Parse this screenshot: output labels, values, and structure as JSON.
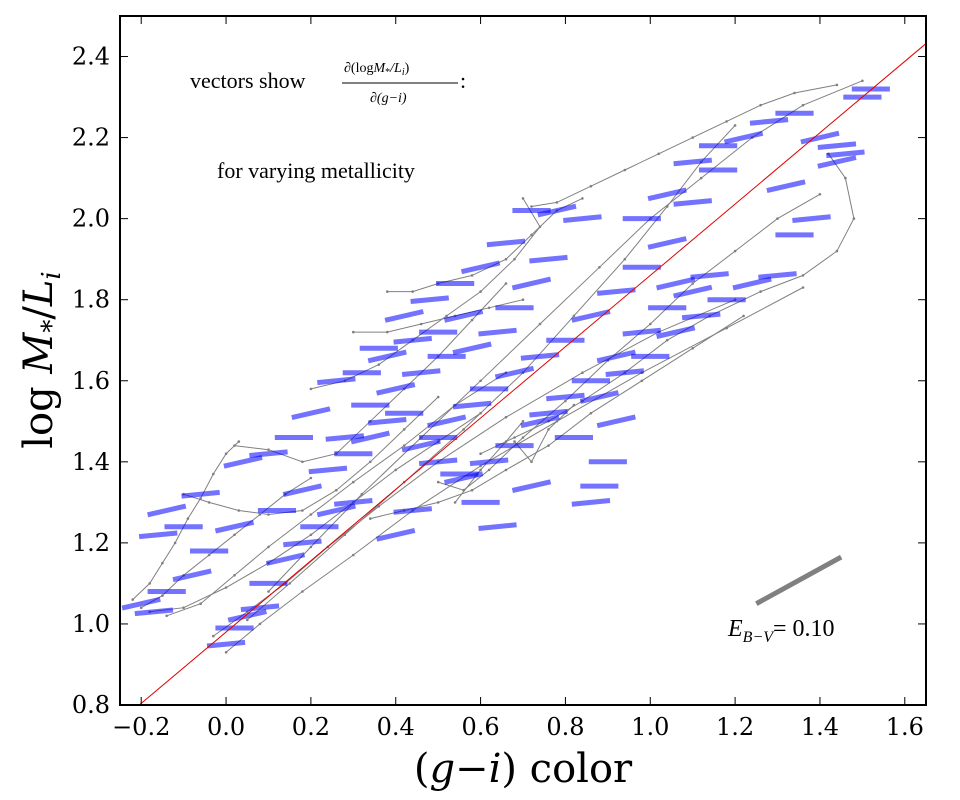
{
  "chart_data": {
    "type": "scatter",
    "title": "",
    "xlabel": {
      "pre": "(",
      "var1": "g",
      "dash": "−",
      "var2": "i",
      "post": ") color"
    },
    "ylabel": {
      "pre": "log ",
      "var": "M",
      "sub1": "*",
      "slash": "/",
      "var2": "L",
      "sub2": "i"
    },
    "xlim": [
      -0.25,
      1.65
    ],
    "ylim": [
      0.8,
      2.5
    ],
    "xticks": [
      -0.2,
      0.0,
      0.2,
      0.4,
      0.6,
      0.8,
      1.0,
      1.2,
      1.4,
      1.6
    ],
    "xtick_labels": [
      "−0.2",
      "0.0",
      "0.2",
      "0.4",
      "0.6",
      "0.8",
      "1.0",
      "1.2",
      "1.4",
      "1.6"
    ],
    "yticks": [
      0.8,
      1.0,
      1.2,
      1.4,
      1.6,
      1.8,
      2.0,
      2.2,
      2.4
    ],
    "ytick_labels": [
      "0.8",
      "1.0",
      "1.2",
      "1.4",
      "1.6",
      "1.8",
      "2.0",
      "2.2",
      "2.4"
    ],
    "fit_line": {
      "intercept": 0.98,
      "slope": 0.88,
      "color": "#e00000"
    },
    "model_tracks_color": "#808080",
    "vector_color": "#0000ff",
    "model_tracks": [
      [
        [
          -0.22,
          1.06
        ],
        [
          -0.18,
          1.1
        ],
        [
          -0.15,
          1.15
        ],
        [
          -0.12,
          1.2
        ],
        [
          -0.09,
          1.26
        ],
        [
          -0.06,
          1.31
        ],
        [
          -0.03,
          1.37
        ],
        [
          0.0,
          1.42
        ],
        [
          0.03,
          1.45
        ]
      ],
      [
        [
          -0.2,
          1.04
        ],
        [
          -0.15,
          1.07
        ],
        [
          -0.1,
          1.12
        ],
        [
          -0.04,
          1.17
        ],
        [
          0.02,
          1.22
        ],
        [
          0.08,
          1.27
        ],
        [
          0.14,
          1.32
        ],
        [
          0.2,
          1.36
        ]
      ],
      [
        [
          -0.18,
          1.03
        ],
        [
          -0.1,
          1.04
        ],
        [
          0.0,
          1.09
        ],
        [
          0.1,
          1.15
        ],
        [
          0.2,
          1.22
        ],
        [
          0.3,
          1.3
        ],
        [
          0.4,
          1.38
        ],
        [
          0.5,
          1.45
        ],
        [
          0.6,
          1.52
        ]
      ],
      [
        [
          -0.14,
          1.02
        ],
        [
          -0.06,
          1.05
        ],
        [
          0.02,
          1.12
        ],
        [
          0.1,
          1.19
        ],
        [
          0.2,
          1.27
        ],
        [
          0.3,
          1.35
        ],
        [
          0.42,
          1.44
        ],
        [
          0.54,
          1.54
        ],
        [
          0.66,
          1.62
        ]
      ],
      [
        [
          -0.03,
          0.97
        ],
        [
          0.05,
          1.03
        ],
        [
          0.14,
          1.1
        ],
        [
          0.24,
          1.19
        ],
        [
          0.36,
          1.29
        ],
        [
          0.5,
          1.4
        ],
        [
          0.66,
          1.51
        ],
        [
          0.84,
          1.62
        ],
        [
          1.02,
          1.72
        ],
        [
          1.2,
          1.8
        ]
      ],
      [
        [
          0.0,
          0.93
        ],
        [
          0.08,
          1.0
        ],
        [
          0.18,
          1.08
        ],
        [
          0.3,
          1.17
        ],
        [
          0.44,
          1.28
        ],
        [
          0.6,
          1.39
        ],
        [
          0.78,
          1.5
        ],
        [
          0.98,
          1.62
        ],
        [
          1.18,
          1.73
        ],
        [
          1.36,
          1.83
        ]
      ],
      [
        [
          0.05,
          1.01
        ],
        [
          0.15,
          1.1
        ],
        [
          0.28,
          1.22
        ],
        [
          0.42,
          1.35
        ],
        [
          0.56,
          1.48
        ],
        [
          0.7,
          1.62
        ],
        [
          0.82,
          1.76
        ],
        [
          0.94,
          1.9
        ],
        [
          1.04,
          2.03
        ],
        [
          1.12,
          2.14
        ],
        [
          1.2,
          2.23
        ]
      ],
      [
        [
          0.1,
          1.08
        ],
        [
          0.2,
          1.19
        ],
        [
          0.32,
          1.32
        ],
        [
          0.46,
          1.46
        ],
        [
          0.6,
          1.6
        ],
        [
          0.74,
          1.74
        ],
        [
          0.88,
          1.88
        ],
        [
          1.0,
          2.0
        ],
        [
          1.12,
          2.1
        ],
        [
          1.24,
          2.2
        ],
        [
          1.36,
          2.28
        ],
        [
          1.5,
          2.34
        ]
      ],
      [
        [
          -0.1,
          1.32
        ],
        [
          -0.04,
          1.3
        ],
        [
          0.03,
          1.28
        ],
        [
          0.1,
          1.27
        ],
        [
          0.18,
          1.28
        ],
        [
          0.26,
          1.33
        ],
        [
          0.34,
          1.4
        ],
        [
          0.42,
          1.48
        ],
        [
          0.5,
          1.56
        ]
      ],
      [
        [
          0.02,
          1.44
        ],
        [
          0.1,
          1.43
        ],
        [
          0.18,
          1.4
        ],
        [
          0.26,
          1.42
        ],
        [
          0.34,
          1.5
        ],
        [
          0.42,
          1.58
        ],
        [
          0.5,
          1.66
        ],
        [
          0.58,
          1.75
        ],
        [
          0.66,
          1.84
        ]
      ],
      [
        [
          0.2,
          1.58
        ],
        [
          0.28,
          1.6
        ],
        [
          0.36,
          1.64
        ],
        [
          0.44,
          1.7
        ],
        [
          0.52,
          1.76
        ],
        [
          0.6,
          1.82
        ],
        [
          0.68,
          1.9
        ],
        [
          0.74,
          1.98
        ],
        [
          0.7,
          2.05
        ]
      ],
      [
        [
          0.38,
          1.82
        ],
        [
          0.44,
          1.82
        ],
        [
          0.5,
          1.84
        ],
        [
          0.58,
          1.86
        ],
        [
          0.66,
          1.9
        ],
        [
          0.72,
          1.96
        ],
        [
          0.78,
          2.02
        ],
        [
          0.84,
          2.05
        ]
      ],
      [
        [
          0.5,
          1.35
        ],
        [
          0.56,
          1.33
        ],
        [
          0.62,
          1.38
        ],
        [
          0.7,
          1.46
        ],
        [
          0.8,
          1.55
        ],
        [
          0.9,
          1.65
        ],
        [
          1.0,
          1.74
        ],
        [
          1.1,
          1.84
        ],
        [
          1.2,
          1.92
        ],
        [
          1.3,
          2.0
        ],
        [
          1.4,
          2.06
        ]
      ],
      [
        [
          0.34,
          1.26
        ],
        [
          0.42,
          1.28
        ],
        [
          0.5,
          1.3
        ],
        [
          0.58,
          1.33
        ],
        [
          0.66,
          1.38
        ],
        [
          0.76,
          1.44
        ],
        [
          0.86,
          1.52
        ],
        [
          0.98,
          1.6
        ],
        [
          1.1,
          1.68
        ],
        [
          1.22,
          1.76
        ]
      ],
      [
        [
          0.72,
          2.03
        ],
        [
          0.78,
          2.04
        ],
        [
          0.86,
          2.08
        ],
        [
          0.94,
          2.12
        ],
        [
          1.02,
          2.16
        ],
        [
          1.1,
          2.2
        ],
        [
          1.18,
          2.24
        ],
        [
          1.26,
          2.28
        ],
        [
          1.34,
          2.31
        ],
        [
          1.44,
          2.33
        ]
      ],
      [
        [
          0.3,
          1.72
        ],
        [
          0.38,
          1.72
        ],
        [
          0.46,
          1.74
        ],
        [
          0.54,
          1.76
        ],
        [
          0.62,
          1.78
        ],
        [
          0.7,
          1.8
        ]
      ],
      [
        [
          0.6,
          1.42
        ],
        [
          0.68,
          1.46
        ],
        [
          0.76,
          1.5
        ],
        [
          0.84,
          1.55
        ],
        [
          0.94,
          1.62
        ],
        [
          1.04,
          1.7
        ],
        [
          1.14,
          1.76
        ],
        [
          1.26,
          1.82
        ],
        [
          1.36,
          1.86
        ],
        [
          1.44,
          1.92
        ],
        [
          1.48,
          2.0
        ],
        [
          1.46,
          2.1
        ],
        [
          1.42,
          2.16
        ]
      ],
      [
        [
          0.54,
          1.3
        ],
        [
          0.6,
          1.38
        ],
        [
          0.66,
          1.45
        ],
        [
          0.7,
          1.5
        ]
      ],
      [
        [
          0.68,
          1.45
        ],
        [
          0.72,
          1.4
        ],
        [
          0.76,
          1.48
        ],
        [
          0.82,
          1.54
        ]
      ]
    ],
    "metallicity_vectors": [
      [
        -0.2,
        1.05
      ],
      [
        -0.17,
        1.03
      ],
      [
        -0.14,
        1.08
      ],
      [
        -0.08,
        1.12
      ],
      [
        -0.16,
        1.22
      ],
      [
        -0.1,
        1.24
      ],
      [
        -0.14,
        1.28
      ],
      [
        -0.06,
        1.32
      ],
      [
        -0.04,
        1.18
      ],
      [
        0.02,
        1.24
      ],
      [
        0.0,
        0.95
      ],
      [
        0.02,
        0.99
      ],
      [
        0.05,
        1.02
      ],
      [
        0.08,
        1.04
      ],
      [
        0.1,
        1.1
      ],
      [
        0.14,
        1.16
      ],
      [
        0.18,
        1.2
      ],
      [
        0.22,
        1.24
      ],
      [
        0.26,
        1.28
      ],
      [
        0.3,
        1.3
      ],
      [
        0.12,
        1.28
      ],
      [
        0.18,
        1.33
      ],
      [
        0.24,
        1.38
      ],
      [
        0.3,
        1.42
      ],
      [
        0.34,
        1.46
      ],
      [
        0.38,
        1.5
      ],
      [
        0.42,
        1.52
      ],
      [
        0.46,
        1.44
      ],
      [
        0.5,
        1.4
      ],
      [
        0.55,
        1.37
      ],
      [
        0.04,
        1.4
      ],
      [
        0.1,
        1.42
      ],
      [
        0.16,
        1.46
      ],
      [
        0.2,
        1.52
      ],
      [
        0.26,
        1.6
      ],
      [
        0.32,
        1.62
      ],
      [
        0.38,
        1.66
      ],
      [
        0.44,
        1.7
      ],
      [
        0.5,
        1.72
      ],
      [
        0.56,
        1.76
      ],
      [
        0.28,
        1.46
      ],
      [
        0.34,
        1.54
      ],
      [
        0.4,
        1.58
      ],
      [
        0.46,
        1.62
      ],
      [
        0.52,
        1.66
      ],
      [
        0.58,
        1.68
      ],
      [
        0.64,
        1.72
      ],
      [
        0.68,
        1.78
      ],
      [
        0.72,
        1.84
      ],
      [
        0.76,
        1.9
      ],
      [
        0.36,
        1.68
      ],
      [
        0.42,
        1.76
      ],
      [
        0.48,
        1.8
      ],
      [
        0.54,
        1.84
      ],
      [
        0.6,
        1.88
      ],
      [
        0.66,
        1.94
      ],
      [
        0.72,
        2.02
      ],
      [
        0.78,
        2.02
      ],
      [
        0.84,
        2.0
      ],
      [
        0.62,
        1.58
      ],
      [
        0.68,
        1.62
      ],
      [
        0.74,
        1.66
      ],
      [
        0.8,
        1.7
      ],
      [
        0.86,
        1.76
      ],
      [
        0.92,
        1.82
      ],
      [
        0.98,
        1.88
      ],
      [
        1.04,
        1.94
      ],
      [
        1.1,
        2.04
      ],
      [
        1.16,
        2.12
      ],
      [
        0.56,
        1.36
      ],
      [
        0.62,
        1.4
      ],
      [
        0.68,
        1.44
      ],
      [
        0.74,
        1.5
      ],
      [
        0.8,
        1.56
      ],
      [
        0.86,
        1.6
      ],
      [
        0.92,
        1.66
      ],
      [
        0.98,
        1.72
      ],
      [
        1.04,
        1.78
      ],
      [
        1.1,
        1.82
      ],
      [
        0.76,
        1.52
      ],
      [
        0.82,
        1.46
      ],
      [
        0.88,
        1.56
      ],
      [
        0.94,
        1.62
      ],
      [
        1.0,
        1.66
      ],
      [
        1.06,
        1.72
      ],
      [
        1.12,
        1.76
      ],
      [
        1.18,
        1.8
      ],
      [
        1.24,
        1.84
      ],
      [
        1.3,
        1.86
      ],
      [
        0.98,
        2.0
      ],
      [
        1.04,
        2.06
      ],
      [
        1.1,
        2.14
      ],
      [
        1.16,
        2.18
      ],
      [
        1.22,
        2.2
      ],
      [
        1.28,
        2.24
      ],
      [
        1.34,
        2.26
      ],
      [
        1.4,
        2.2
      ],
      [
        1.44,
        2.18
      ],
      [
        1.5,
        2.3
      ],
      [
        1.32,
        2.08
      ],
      [
        1.38,
        2.0
      ],
      [
        1.34,
        1.96
      ],
      [
        1.44,
        2.14
      ],
      [
        1.46,
        2.16
      ],
      [
        1.52,
        2.32
      ],
      [
        1.06,
        1.84
      ],
      [
        1.14,
        1.86
      ],
      [
        0.9,
        1.4
      ],
      [
        0.92,
        1.5
      ],
      [
        0.86,
        1.3
      ],
      [
        0.88,
        1.34
      ],
      [
        0.72,
        1.34
      ],
      [
        0.64,
        1.24
      ],
      [
        0.6,
        1.3
      ],
      [
        0.4,
        1.22
      ],
      [
        0.44,
        1.28
      ],
      [
        0.5,
        1.46
      ],
      [
        0.52,
        1.5
      ],
      [
        0.58,
        1.54
      ]
    ],
    "annotations": {
      "vectors_prefix": "vectors show",
      "frac_num": "∂(log",
      "frac_num_var": "M",
      "frac_num_sub": "*",
      "frac_num_tail": "/L",
      "frac_num_sub2": "i",
      "frac_num_close": ")",
      "frac_den": "∂(g−i)",
      "colon": ":",
      "metallicity": "for varying metallicity",
      "metallicity_color": "#0000dd",
      "ebv_symbol": "E",
      "ebv_sub": "B−V",
      "ebv_value": "= 0.10",
      "reddening_vector": {
        "x0": 1.25,
        "y0": 1.05,
        "x1": 1.45,
        "y1": 1.165
      }
    }
  }
}
